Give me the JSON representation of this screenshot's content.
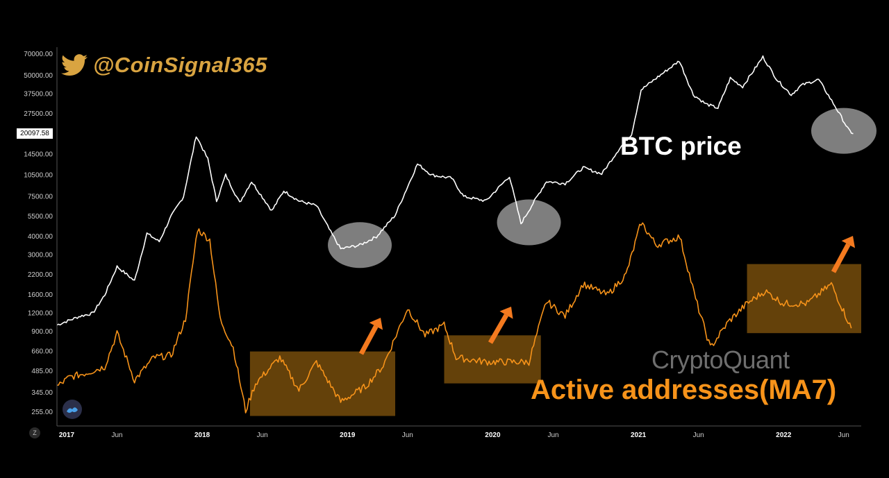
{
  "handle": {
    "text": "@CoinSignal365",
    "icon": "twitter-bird-icon",
    "color": "#d9a441"
  },
  "labels": {
    "btc": "BTC price",
    "active": "Active addresses(MA7)",
    "watermark": "CryptoQuant",
    "price_tag": "20097.58",
    "z_button": "Z"
  },
  "colors": {
    "btc": "#ffffff",
    "active": "#f7931a",
    "box": "#8a5a0e",
    "ellipse": "#9a9a9a",
    "arrow": "#f47a1f"
  },
  "chart_data": {
    "type": "line",
    "y_scale": "log",
    "y_ticks": [
      "70000.00",
      "50000.00",
      "37500.00",
      "27500.00",
      "20097.58",
      "14500.00",
      "10500.00",
      "7500.00",
      "5500.00",
      "4000.00",
      "3000.00",
      "2200.00",
      "1600.00",
      "1200.00",
      "900.00",
      "660.00",
      "485.00",
      "345.00",
      "255.00"
    ],
    "x_ticks": [
      {
        "label": "2017",
        "year": true
      },
      {
        "label": "Jun",
        "year": false
      },
      {
        "label": "2018",
        "year": true
      },
      {
        "label": "Jun",
        "year": false
      },
      {
        "label": "2019",
        "year": true
      },
      {
        "label": "Jun",
        "year": false
      },
      {
        "label": "2020",
        "year": true
      },
      {
        "label": "Jun",
        "year": false
      },
      {
        "label": "2021",
        "year": true
      },
      {
        "label": "Jun",
        "year": false
      },
      {
        "label": "2022",
        "year": true
      },
      {
        "label": "Jun",
        "year": false
      }
    ],
    "x_range": [
      "2017-01-01",
      "2022-07-15"
    ],
    "series": [
      {
        "name": "BTC price",
        "points": [
          [
            "2017-01-01",
            1000
          ],
          [
            "2017-03-01",
            1150
          ],
          [
            "2017-04-01",
            1200
          ],
          [
            "2017-05-01",
            1600
          ],
          [
            "2017-06-01",
            2500
          ],
          [
            "2017-07-15",
            2000
          ],
          [
            "2017-08-15",
            4200
          ],
          [
            "2017-09-15",
            3700
          ],
          [
            "2017-10-15",
            5500
          ],
          [
            "2017-11-15",
            7500
          ],
          [
            "2017-12-17",
            19500
          ],
          [
            "2018-01-15",
            13500
          ],
          [
            "2018-02-06",
            7000
          ],
          [
            "2018-03-01",
            10500
          ],
          [
            "2018-04-05",
            6800
          ],
          [
            "2018-05-05",
            9500
          ],
          [
            "2018-06-25",
            6000
          ],
          [
            "2018-07-25",
            8200
          ],
          [
            "2018-09-01",
            7000
          ],
          [
            "2018-10-15",
            6500
          ],
          [
            "2018-11-20",
            4300
          ],
          [
            "2018-12-15",
            3300
          ],
          [
            "2019-02-01",
            3500
          ],
          [
            "2019-03-15",
            4000
          ],
          [
            "2019-05-01",
            5600
          ],
          [
            "2019-06-26",
            12500
          ],
          [
            "2019-08-01",
            10500
          ],
          [
            "2019-09-20",
            10000
          ],
          [
            "2019-10-20",
            7500
          ],
          [
            "2019-12-15",
            7000
          ],
          [
            "2020-02-12",
            10300
          ],
          [
            "2020-03-12",
            4900
          ],
          [
            "2020-04-15",
            7000
          ],
          [
            "2020-05-15",
            9500
          ],
          [
            "2020-07-01",
            9200
          ],
          [
            "2020-08-15",
            11800
          ],
          [
            "2020-10-01",
            10700
          ],
          [
            "2020-11-15",
            16000
          ],
          [
            "2020-12-15",
            20000
          ],
          [
            "2021-01-08",
            40000
          ],
          [
            "2021-02-15",
            48000
          ],
          [
            "2021-04-14",
            63000
          ],
          [
            "2021-05-19",
            37000
          ],
          [
            "2021-06-20",
            32000
          ],
          [
            "2021-07-20",
            30000
          ],
          [
            "2021-08-20",
            48000
          ],
          [
            "2021-09-20",
            42000
          ],
          [
            "2021-11-10",
            67000
          ],
          [
            "2021-12-15",
            47000
          ],
          [
            "2022-01-20",
            37000
          ],
          [
            "2022-02-15",
            43000
          ],
          [
            "2022-03-30",
            47000
          ],
          [
            "2022-05-10",
            31000
          ],
          [
            "2022-06-15",
            21000
          ],
          [
            "2022-06-25",
            20097
          ]
        ]
      },
      {
        "name": "Active addresses(MA7)",
        "points": [
          [
            "2017-01-01",
            380
          ],
          [
            "2017-02-01",
            440
          ],
          [
            "2017-03-15",
            470
          ],
          [
            "2017-05-01",
            520
          ],
          [
            "2017-06-01",
            880
          ],
          [
            "2017-07-15",
            420
          ],
          [
            "2017-09-01",
            600
          ],
          [
            "2017-10-15",
            620
          ],
          [
            "2017-11-20",
            1100
          ],
          [
            "2017-12-20",
            4500
          ],
          [
            "2018-01-20",
            3800
          ],
          [
            "2018-02-15",
            1100
          ],
          [
            "2018-03-20",
            700
          ],
          [
            "2018-04-20",
            260
          ],
          [
            "2018-05-15",
            400
          ],
          [
            "2018-07-15",
            600
          ],
          [
            "2018-09-01",
            360
          ],
          [
            "2018-10-15",
            560
          ],
          [
            "2018-12-15",
            300
          ],
          [
            "2019-02-15",
            380
          ],
          [
            "2019-04-01",
            530
          ],
          [
            "2019-06-01",
            1300
          ],
          [
            "2019-07-15",
            850
          ],
          [
            "2019-09-01",
            1000
          ],
          [
            "2019-10-01",
            600
          ],
          [
            "2019-12-15",
            560
          ],
          [
            "2020-02-15",
            560
          ],
          [
            "2020-04-01",
            560
          ],
          [
            "2020-05-15",
            1450
          ],
          [
            "2020-07-01",
            1150
          ],
          [
            "2020-08-15",
            1900
          ],
          [
            "2020-10-15",
            1600
          ],
          [
            "2020-12-01",
            2200
          ],
          [
            "2021-01-08",
            5000
          ],
          [
            "2021-02-15",
            3500
          ],
          [
            "2021-04-15",
            4000
          ],
          [
            "2021-05-25",
            1500
          ],
          [
            "2021-07-01",
            700
          ],
          [
            "2021-08-15",
            1050
          ],
          [
            "2021-10-01",
            1400
          ],
          [
            "2021-11-15",
            1700
          ],
          [
            "2022-01-01",
            1400
          ],
          [
            "2022-03-01",
            1400
          ],
          [
            "2022-05-01",
            1900
          ],
          [
            "2022-06-20",
            950
          ]
        ]
      }
    ],
    "ellipses": [
      {
        "date": "2019-02-01",
        "value": 3500
      },
      {
        "date": "2020-04-01",
        "value": 5000
      },
      {
        "date": "2022-07-15",
        "value": 21000
      }
    ],
    "boxes": [
      {
        "from": "2018-05-01",
        "to": "2019-05-01",
        "low": 240,
        "high": 660
      },
      {
        "from": "2019-09-01",
        "to": "2020-05-01",
        "low": 400,
        "high": 850
      },
      {
        "from": "2021-10-01",
        "to": "2022-07-15",
        "low": 880,
        "high": 2600
      }
    ]
  }
}
